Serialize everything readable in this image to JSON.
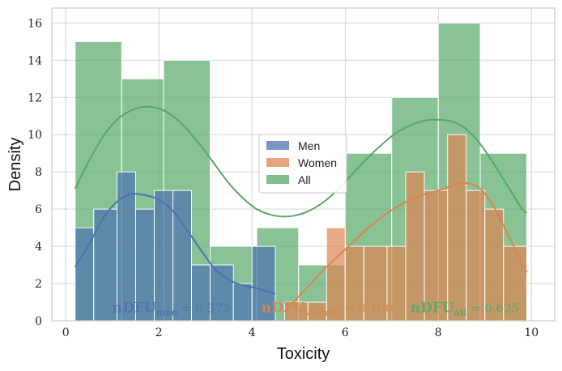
{
  "chart_data": {
    "type": "histogram",
    "xlabel": "Toxicity",
    "ylabel": "Density",
    "xlim": [
      -0.3,
      10.5
    ],
    "ylim": [
      0,
      16.8
    ],
    "xticks": [
      0,
      2,
      4,
      6,
      8,
      10
    ],
    "yticks": [
      0,
      2,
      4,
      6,
      8,
      10,
      12,
      14,
      16
    ],
    "grid": true,
    "legend": {
      "placement": "center",
      "entries": [
        {
          "name": "Men",
          "color": "#4c72b0"
        },
        {
          "name": "Women",
          "color": "#dd8452"
        },
        {
          "name": "All",
          "color": "#55a868"
        }
      ]
    },
    "series": [
      {
        "name": "Men",
        "color": "#4c72b0",
        "bins": [
          {
            "x0": 0.2,
            "x1": 0.6,
            "y": 5
          },
          {
            "x0": 0.6,
            "x1": 1.1,
            "y": 6
          },
          {
            "x0": 1.1,
            "x1": 1.5,
            "y": 8
          },
          {
            "x0": 1.5,
            "x1": 1.9,
            "y": 6
          },
          {
            "x0": 1.9,
            "x1": 2.3,
            "y": 7
          },
          {
            "x0": 2.3,
            "x1": 2.7,
            "y": 7
          },
          {
            "x0": 2.7,
            "x1": 3.1,
            "y": 3
          },
          {
            "x0": 3.1,
            "x1": 3.6,
            "y": 3
          },
          {
            "x0": 3.6,
            "x1": 4.0,
            "y": 2
          },
          {
            "x0": 4.0,
            "x1": 4.5,
            "y": 4
          }
        ],
        "kde": [
          [
            0.2,
            2.9
          ],
          [
            0.5,
            4.1
          ],
          [
            0.8,
            5.5
          ],
          [
            1.1,
            6.4
          ],
          [
            1.4,
            6.8
          ],
          [
            1.7,
            6.75
          ],
          [
            2.0,
            6.5
          ],
          [
            2.3,
            5.9
          ],
          [
            2.6,
            4.9
          ],
          [
            2.9,
            3.8
          ],
          [
            3.2,
            2.8
          ],
          [
            3.5,
            2.2
          ],
          [
            3.8,
            1.9
          ],
          [
            4.1,
            1.75
          ],
          [
            4.5,
            1.45
          ]
        ]
      },
      {
        "name": "Women",
        "color": "#dd8452",
        "bins": [
          {
            "x0": 4.7,
            "x1": 5.2,
            "y": 1
          },
          {
            "x0": 5.2,
            "x1": 5.6,
            "y": 1
          },
          {
            "x0": 5.6,
            "x1": 6.0,
            "y": 5
          },
          {
            "x0": 6.0,
            "x1": 6.4,
            "y": 4
          },
          {
            "x0": 6.4,
            "x1": 6.9,
            "y": 4
          },
          {
            "x0": 6.9,
            "x1": 7.3,
            "y": 4
          },
          {
            "x0": 7.3,
            "x1": 7.7,
            "y": 8
          },
          {
            "x0": 7.7,
            "x1": 8.2,
            "y": 7
          },
          {
            "x0": 8.2,
            "x1": 8.6,
            "y": 10
          },
          {
            "x0": 8.6,
            "x1": 9.0,
            "y": 7
          },
          {
            "x0": 9.0,
            "x1": 9.4,
            "y": 6
          },
          {
            "x0": 9.4,
            "x1": 9.9,
            "y": 4
          }
        ],
        "kde": [
          [
            4.7,
            0.5
          ],
          [
            5.0,
            1.3
          ],
          [
            5.3,
            2.1
          ],
          [
            5.6,
            2.9
          ],
          [
            5.9,
            3.6
          ],
          [
            6.2,
            4.3
          ],
          [
            6.5,
            5.0
          ],
          [
            6.8,
            5.6
          ],
          [
            7.1,
            6.1
          ],
          [
            7.4,
            6.5
          ],
          [
            7.7,
            6.8
          ],
          [
            8.0,
            7.0
          ],
          [
            8.3,
            7.25
          ],
          [
            8.6,
            7.4
          ],
          [
            8.9,
            7.1
          ],
          [
            9.2,
            6.1
          ],
          [
            9.5,
            4.6
          ],
          [
            9.9,
            2.6
          ]
        ]
      },
      {
        "name": "All",
        "color": "#55a868",
        "bins": [
          {
            "x0": 0.2,
            "x1": 1.2,
            "y": 15
          },
          {
            "x0": 1.2,
            "x1": 2.1,
            "y": 13
          },
          {
            "x0": 2.1,
            "x1": 3.1,
            "y": 14
          },
          {
            "x0": 3.1,
            "x1": 4.1,
            "y": 4
          },
          {
            "x0": 4.1,
            "x1": 5.0,
            "y": 5
          },
          {
            "x0": 5.0,
            "x1": 6.0,
            "y": 3
          },
          {
            "x0": 6.0,
            "x1": 7.0,
            "y": 9
          },
          {
            "x0": 7.0,
            "x1": 8.0,
            "y": 12
          },
          {
            "x0": 8.0,
            "x1": 8.9,
            "y": 16
          },
          {
            "x0": 8.9,
            "x1": 9.9,
            "y": 9
          }
        ],
        "kde": [
          [
            0.2,
            7.1
          ],
          [
            0.5,
            8.6
          ],
          [
            0.8,
            9.9
          ],
          [
            1.1,
            10.8
          ],
          [
            1.4,
            11.3
          ],
          [
            1.7,
            11.5
          ],
          [
            2.0,
            11.4
          ],
          [
            2.3,
            11.0
          ],
          [
            2.6,
            10.3
          ],
          [
            2.9,
            9.4
          ],
          [
            3.2,
            8.4
          ],
          [
            3.5,
            7.4
          ],
          [
            3.8,
            6.6
          ],
          [
            4.1,
            6.0
          ],
          [
            4.4,
            5.7
          ],
          [
            4.7,
            5.6
          ],
          [
            5.0,
            5.7
          ],
          [
            5.3,
            6.0
          ],
          [
            5.6,
            6.5
          ],
          [
            5.9,
            7.2
          ],
          [
            6.2,
            8.0
          ],
          [
            6.5,
            8.8
          ],
          [
            6.8,
            9.5
          ],
          [
            7.1,
            10.1
          ],
          [
            7.4,
            10.5
          ],
          [
            7.7,
            10.75
          ],
          [
            8.0,
            10.8
          ],
          [
            8.3,
            10.7
          ],
          [
            8.6,
            10.3
          ],
          [
            8.9,
            9.5
          ],
          [
            9.2,
            8.4
          ],
          [
            9.5,
            7.2
          ],
          [
            9.8,
            6.0
          ],
          [
            9.9,
            5.8
          ]
        ]
      }
    ],
    "annotations": [
      {
        "id": "men",
        "main": "nDFU",
        "sub": "men",
        "value": " = 0.375",
        "color": "#4c72b0",
        "x": 1.0,
        "y": 0.45
      },
      {
        "id": "women",
        "main": "nDFU",
        "sub": "women",
        "value": " = 0.100",
        "color": "#dd8452",
        "x": 4.2,
        "y": 0.45
      },
      {
        "id": "all",
        "main": "nDFU",
        "sub": "all",
        "value": " = 0.625",
        "color": "#55a868",
        "x": 7.4,
        "y": 0.45
      }
    ]
  }
}
